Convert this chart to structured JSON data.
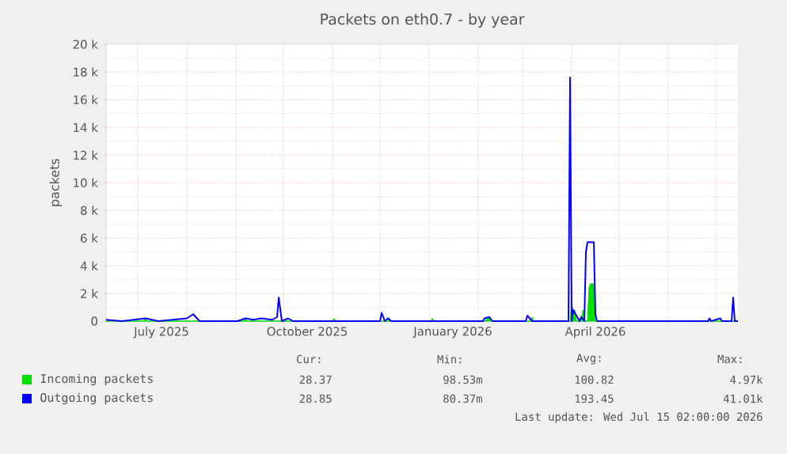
{
  "chart_data": {
    "type": "line",
    "title": "Packets on eth0.7 - by year",
    "ylabel": "packets",
    "xlim": [
      "2025-06-11",
      "2026-07-15"
    ],
    "xticks": [
      {
        "value": "2025-07-01",
        "label": null
      },
      {
        "value": "2025-07-16",
        "label": "July 2025"
      },
      {
        "value": "2025-08-01",
        "label": null
      },
      {
        "value": "2025-09-01",
        "label": null
      },
      {
        "value": "2025-10-01",
        "label": null
      },
      {
        "value": "2025-10-16",
        "label": "October 2025"
      },
      {
        "value": "2025-11-01",
        "label": null
      },
      {
        "value": "2025-12-01",
        "label": null
      },
      {
        "value": "2026-01-01",
        "label": null
      },
      {
        "value": "2026-01-16",
        "label": "January 2026"
      },
      {
        "value": "2026-02-01",
        "label": null
      },
      {
        "value": "2026-03-01",
        "label": null
      },
      {
        "value": "2026-04-01",
        "label": null
      },
      {
        "value": "2026-04-16",
        "label": "April 2026"
      },
      {
        "value": "2026-05-01",
        "label": null
      },
      {
        "value": "2026-06-01",
        "label": null
      },
      {
        "value": "2026-07-01",
        "label": null
      }
    ],
    "ylim": [
      0,
      20000
    ],
    "yticks": [
      0,
      {
        "value": 2000,
        "label": "2 k"
      },
      {
        "value": 4000,
        "label": "4 k"
      },
      {
        "value": 6000,
        "label": "6 k"
      },
      {
        "value": 8000,
        "label": "8 k"
      },
      {
        "value": 10000,
        "label": "10 k"
      },
      {
        "value": 12000,
        "label": "12 k"
      },
      {
        "value": 14000,
        "label": "14 k"
      },
      {
        "value": 16000,
        "label": "16 k"
      },
      {
        "value": 18000,
        "label": "18 k"
      },
      {
        "value": 20000,
        "label": "20 k"
      }
    ],
    "grid": true,
    "legend": "bottom left",
    "series": [
      {
        "name": "Incoming packets",
        "type": "area",
        "color": "#00e000",
        "x": [
          "2025-06-11",
          "2025-07-05",
          "2025-07-06",
          "2025-07-07",
          "2025-09-06",
          "2025-09-07",
          "2025-09-08",
          "2025-11-01",
          "2025-11-02",
          "2025-11-03",
          "2025-12-06",
          "2025-12-07",
          "2025-12-08",
          "2026-01-02",
          "2026-01-03",
          "2026-01-04",
          "2026-02-05",
          "2026-02-07",
          "2026-02-09",
          "2026-02-10",
          "2026-03-06",
          "2026-03-07",
          "2026-03-08",
          "2026-03-31",
          "2026-04-01",
          "2026-04-02",
          "2026-04-03",
          "2026-04-04",
          "2026-04-07",
          "2026-04-08",
          "2026-04-09",
          "2026-04-11",
          "2026-04-12",
          "2026-04-13",
          "2026-04-15",
          "2026-04-16",
          "2026-06-26",
          "2026-06-27",
          "2026-06-28",
          "2026-07-15"
        ],
        "values": [
          0,
          0,
          200,
          0,
          0,
          200,
          0,
          0,
          200,
          0,
          0,
          200,
          0,
          0,
          200,
          0,
          0,
          200,
          200,
          0,
          0,
          300,
          0,
          0,
          1200,
          800,
          800,
          0,
          0,
          800,
          0,
          0,
          2500,
          2700,
          2700,
          0,
          0,
          200,
          0,
          0
        ]
      },
      {
        "name": "Outgoing packets",
        "color": "#0000ff",
        "x": [
          "2025-06-11",
          "2025-06-21",
          "2025-07-06",
          "2025-07-14",
          "2025-08-01",
          "2025-08-05",
          "2025-08-09",
          "2025-09-02",
          "2025-09-07",
          "2025-09-12",
          "2025-09-17",
          "2025-09-24",
          "2025-09-27",
          "2025-09-28",
          "2025-09-30",
          "2025-10-04",
          "2025-10-07",
          "2025-12-01",
          "2025-12-02",
          "2025-12-04",
          "2025-12-06",
          "2025-12-08",
          "2026-02-04",
          "2026-02-05",
          "2026-02-08",
          "2026-02-10",
          "2026-03-03",
          "2026-03-04",
          "2026-03-07",
          "2026-03-30",
          "2026-03-31",
          "2026-04-01",
          "2026-04-02",
          "2026-04-06",
          "2026-04-07",
          "2026-04-09",
          "2026-04-10",
          "2026-04-11",
          "2026-04-15",
          "2026-04-16",
          "2026-04-17",
          "2026-06-26",
          "2026-06-27",
          "2026-06-28",
          "2026-07-04",
          "2026-07-05",
          "2026-07-11",
          "2026-07-12",
          "2026-07-13",
          "2026-07-15"
        ],
        "values": [
          100,
          0,
          200,
          0,
          200,
          500,
          0,
          0,
          200,
          100,
          200,
          100,
          300,
          1700,
          0,
          200,
          0,
          0,
          600,
          0,
          200,
          0,
          0,
          200,
          300,
          0,
          0,
          400,
          0,
          0,
          17600,
          0,
          800,
          0,
          300,
          0,
          5000,
          5700,
          5700,
          500,
          0,
          0,
          200,
          0,
          200,
          0,
          0,
          1700,
          0,
          0
        ]
      }
    ],
    "annotations": [
      "Cur:",
      "Min:",
      "Avg:",
      "Max:",
      "28.37",
      "98.53m",
      "100.82",
      "4.97k",
      "28.85",
      "80.37m",
      "193.45",
      "41.01k",
      "Last update: Wed Jul 15 02:00:00 2026"
    ]
  }
}
